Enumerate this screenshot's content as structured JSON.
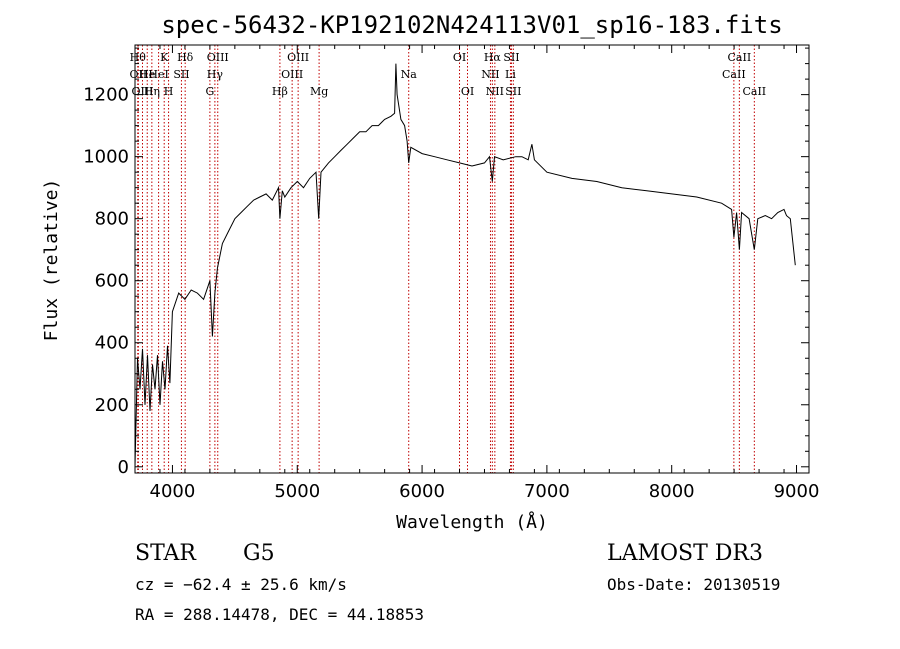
{
  "chart_data": {
    "type": "line",
    "title": "spec-56432-KP192102N424113V01_sp16-183.fits",
    "xlabel": "Wavelength (Å)",
    "ylabel": "Flux (relative)",
    "xlim": [
      3700,
      9100
    ],
    "ylim": [
      -20,
      1360
    ],
    "xticks": [
      4000,
      5000,
      6000,
      7000,
      8000,
      9000
    ],
    "yticks": [
      0,
      200,
      400,
      600,
      800,
      1000,
      1200
    ],
    "series": [
      {
        "x": [
          3700,
          3720,
          3740,
          3760,
          3780,
          3800,
          3820,
          3840,
          3860,
          3880,
          3900,
          3920,
          3940,
          3960,
          3980,
          4000,
          4050,
          4100,
          4150,
          4200,
          4250,
          4300,
          4320,
          4340,
          4360,
          4400,
          4450,
          4500,
          4550,
          4600,
          4650,
          4700,
          4750,
          4800,
          4850,
          4861,
          4880,
          4900,
          4950,
          5000,
          5050,
          5100,
          5150,
          5172,
          5190,
          5250,
          5300,
          5350,
          5400,
          5450,
          5500,
          5550,
          5600,
          5650,
          5700,
          5750,
          5780,
          5790,
          5800,
          5830,
          5860,
          5880,
          5893,
          5910,
          6000,
          6100,
          6200,
          6300,
          6400,
          6500,
          6540,
          6563,
          6580,
          6650,
          6750,
          6800,
          6850,
          6880,
          6900,
          7000,
          7200,
          7400,
          7600,
          7800,
          8000,
          8200,
          8400,
          8480,
          8498,
          8520,
          8542,
          8560,
          8620,
          8662,
          8690,
          8750,
          8800,
          8850,
          8900,
          8920,
          8950,
          8990
        ],
        "y": [
          0,
          350,
          250,
          380,
          200,
          360,
          180,
          330,
          250,
          360,
          200,
          340,
          250,
          390,
          270,
          500,
          560,
          540,
          570,
          560,
          540,
          600,
          420,
          560,
          640,
          720,
          760,
          800,
          820,
          840,
          860,
          870,
          880,
          860,
          900,
          800,
          890,
          870,
          900,
          920,
          900,
          930,
          950,
          800,
          950,
          980,
          1000,
          1020,
          1040,
          1060,
          1080,
          1080,
          1100,
          1100,
          1120,
          1130,
          1140,
          1300,
          1200,
          1120,
          1100,
          1050,
          980,
          1030,
          1010,
          1000,
          990,
          980,
          970,
          980,
          1000,
          920,
          1000,
          990,
          1000,
          1000,
          990,
          1040,
          990,
          950,
          930,
          920,
          900,
          890,
          880,
          870,
          850,
          830,
          740,
          820,
          700,
          820,
          800,
          700,
          800,
          810,
          800,
          820,
          830,
          810,
          800,
          650
        ]
      }
    ],
    "lines": [
      {
        "w": 3722,
        "label": "Hθ",
        "row": 0
      },
      {
        "w": 3727,
        "label": "OII",
        "row": 1
      },
      {
        "w": 3760,
        "label": "OIII",
        "row": 2
      },
      {
        "w": 3798,
        "label": "He",
        "row": 1
      },
      {
        "w": 3835,
        "label": "Hη",
        "row": 2
      },
      {
        "w": 3889,
        "label": "HeI",
        "row": 1
      },
      {
        "w": 3934,
        "label": "K",
        "row": 0
      },
      {
        "w": 3969,
        "label": "H",
        "row": 2
      },
      {
        "w": 4072,
        "label": "SII",
        "row": 1
      },
      {
        "w": 4102,
        "label": "Hδ",
        "row": 0
      },
      {
        "w": 4300,
        "label": "G",
        "row": 2
      },
      {
        "w": 4340,
        "label": "Hγ",
        "row": 1
      },
      {
        "w": 4363,
        "label": "OIII",
        "row": 0
      },
      {
        "w": 4861,
        "label": "Hβ",
        "row": 2
      },
      {
        "w": 4959,
        "label": "OIII",
        "row": 1
      },
      {
        "w": 5007,
        "label": "OIII",
        "row": 0
      },
      {
        "w": 5175,
        "label": "Mg",
        "row": 2
      },
      {
        "w": 5893,
        "label": "Na",
        "row": 1
      },
      {
        "w": 6300,
        "label": "OI",
        "row": 0
      },
      {
        "w": 6364,
        "label": "OI",
        "row": 2
      },
      {
        "w": 6548,
        "label": "NII",
        "row": 1
      },
      {
        "w": 6563,
        "label": "Hα",
        "row": 0
      },
      {
        "w": 6583,
        "label": "NII",
        "row": 2
      },
      {
        "w": 6708,
        "label": "Li",
        "row": 1
      },
      {
        "w": 6716,
        "label": "SII",
        "row": 0
      },
      {
        "w": 6731,
        "label": "SII",
        "row": 2
      },
      {
        "w": 8498,
        "label": "CaII",
        "row": 1
      },
      {
        "w": 8542,
        "label": "CaII",
        "row": 0
      },
      {
        "w": 8662,
        "label": "CaII",
        "row": 2
      }
    ]
  },
  "footer": {
    "object_type": "STAR",
    "subclass": "G5",
    "survey": "LAMOST DR3",
    "cz": "cz = −62.4 ± 25.6 km/s",
    "obs_date": "Obs-Date: 20130519",
    "coords": "RA = 288.14478, DEC =  44.18853"
  }
}
